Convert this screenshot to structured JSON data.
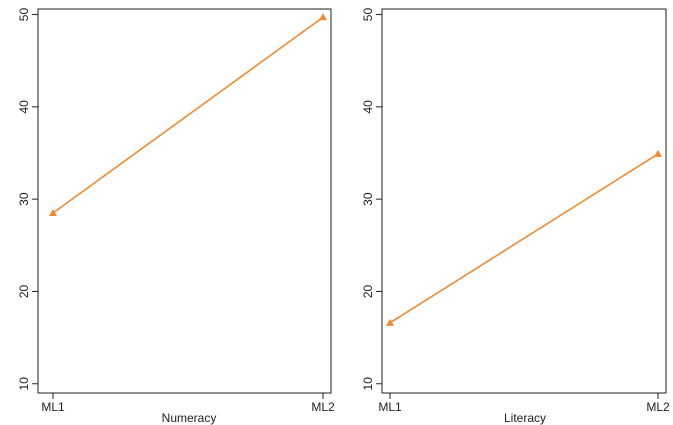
{
  "chart_data": [
    {
      "type": "line",
      "categories": [
        "ML1",
        "ML2"
      ],
      "values": [
        28.5,
        49.7
      ],
      "xlabel": "Numeracy",
      "ylabel": "",
      "ylim": [
        9,
        50.6
      ],
      "yticks": [
        10,
        20,
        30,
        40,
        50
      ],
      "marker": "triangle",
      "grid": false,
      "legend": "none"
    },
    {
      "type": "line",
      "categories": [
        "ML1",
        "ML2"
      ],
      "values": [
        16.6,
        34.9
      ],
      "xlabel": "Literacy",
      "ylabel": "",
      "ylim": [
        9,
        50.6
      ],
      "yticks": [
        10,
        20,
        30,
        40,
        50
      ],
      "marker": "triangle",
      "grid": false,
      "legend": "none"
    }
  ],
  "colors": {
    "series": "#f4892f",
    "axis": "#222222"
  }
}
